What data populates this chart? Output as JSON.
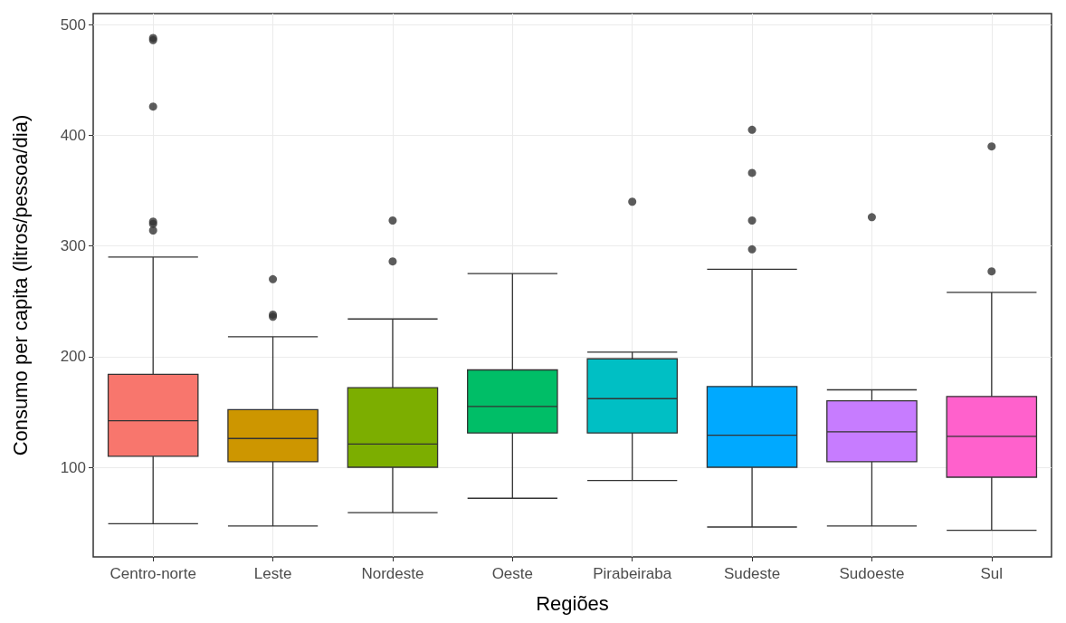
{
  "chart_data": {
    "type": "box",
    "xlabel": "Regiões",
    "ylabel": "Consumo per capita (litros/pessoa/dia)",
    "categories": [
      "Centro-norte",
      "Leste",
      "Nordeste",
      "Oeste",
      "Pirabeiraba",
      "Sudeste",
      "Sudoeste",
      "Sul"
    ],
    "colors": [
      "#f8766d",
      "#cd9600",
      "#7cae00",
      "#00be67",
      "#00bfc4",
      "#00a9ff",
      "#c77cff",
      "#ff61cc"
    ],
    "boxes": [
      {
        "low": 49,
        "q1": 110,
        "median": 142,
        "q3": 184,
        "high": 290,
        "outliers": [
          488,
          486,
          426,
          322,
          320,
          314
        ]
      },
      {
        "low": 47,
        "q1": 105,
        "median": 126,
        "q3": 152,
        "high": 218,
        "outliers": [
          270,
          238,
          236
        ]
      },
      {
        "low": 59,
        "q1": 100,
        "median": 121,
        "q3": 172,
        "high": 234,
        "outliers": [
          323,
          286
        ]
      },
      {
        "low": 72,
        "q1": 131,
        "median": 155,
        "q3": 188,
        "high": 275
      },
      {
        "low": 88,
        "q1": 131,
        "median": 162,
        "q3": 198,
        "high": 204,
        "outliers": [
          340
        ]
      },
      {
        "low": 46,
        "q1": 100,
        "median": 129,
        "q3": 173,
        "high": 279,
        "outliers": [
          405,
          366,
          323,
          297
        ]
      },
      {
        "low": 47,
        "q1": 105,
        "median": 132,
        "q3": 160,
        "high": 170,
        "outliers": [
          326
        ]
      },
      {
        "low": 43,
        "q1": 91,
        "median": 128,
        "q3": 164,
        "high": 258,
        "outliers": [
          390,
          277
        ]
      }
    ],
    "ylim": [
      19,
      510
    ],
    "yticks": [
      100,
      200,
      300,
      400,
      500
    ],
    "grid": true
  }
}
